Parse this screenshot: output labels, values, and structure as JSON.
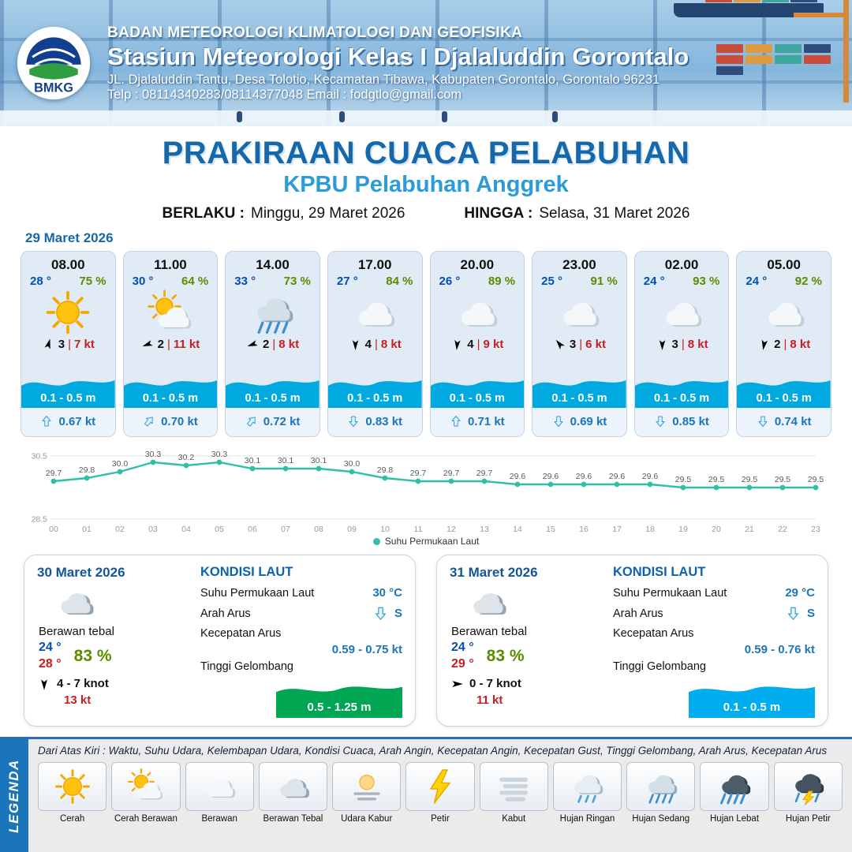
{
  "header": {
    "logo_text": "BMKG",
    "agency": "BADAN METEOROLOGI KLIMATOLOGI DAN GEOFISIKA",
    "station": "Stasiun Meteorologi Kelas I Djalaluddin Gorontalo",
    "address": "JL. Djalaluddin Tantu, Desa Tolotio, Kecamatan Tibawa, Kabupaten Gorontalo, Gorontalo 96231",
    "contact": "Telp : 08114340283/08114377048 Email : fodgtlo@gmail.com"
  },
  "title": {
    "main": "PRAKIRAAN CUACA PELABUHAN",
    "subtitle": "KPBU Pelabuhan Anggrek",
    "berlaku_label": "BERLAKU :",
    "berlaku_value": "Minggu, 29 Maret 2026",
    "hingga_label": "HINGGA :",
    "hingga_value": "Selasa, 31 Maret 2026"
  },
  "ui": {
    "pipe": "|"
  },
  "hourly": {
    "date": "29 Maret 2026",
    "cards": [
      {
        "time": "08.00",
        "temp": "28 °",
        "humidity": "75 %",
        "icon": "cerah",
        "wind_value": "3",
        "wind_speed": "7 kt",
        "wind_rot": 15,
        "wave": "0.1 - 0.5 m",
        "current_rot": 0,
        "current_speed": "0.67 kt"
      },
      {
        "time": "11.00",
        "temp": "30 °",
        "humidity": "64 %",
        "icon": "cerah-berawan",
        "wind_value": "2",
        "wind_speed": "11 kt",
        "wind_rot": 250,
        "wave": "0.1 - 0.5 m",
        "current_rot": 40,
        "current_speed": "0.70 kt"
      },
      {
        "time": "14.00",
        "temp": "33 °",
        "humidity": "73 %",
        "icon": "hujan-sedang",
        "wind_value": "2",
        "wind_speed": "8 kt",
        "wind_rot": 250,
        "wave": "0.1 - 0.5 m",
        "current_rot": 40,
        "current_speed": "0.72 kt"
      },
      {
        "time": "17.00",
        "temp": "27 °",
        "humidity": "84 %",
        "icon": "berawan",
        "wind_value": "4",
        "wind_speed": "8 kt",
        "wind_rot": 180,
        "wave": "0.1 - 0.5 m",
        "current_rot": 180,
        "current_speed": "0.83 kt"
      },
      {
        "time": "20.00",
        "temp": "26 °",
        "humidity": "89 %",
        "icon": "berawan",
        "wind_value": "4",
        "wind_speed": "9 kt",
        "wind_rot": 185,
        "wave": "0.1 - 0.5 m",
        "current_rot": 0,
        "current_speed": "0.71 kt"
      },
      {
        "time": "23.00",
        "temp": "25 °",
        "humidity": "91 %",
        "icon": "berawan",
        "wind_value": "3",
        "wind_speed": "6 kt",
        "wind_rot": 320,
        "wave": "0.1 - 0.5 m",
        "current_rot": 180,
        "current_speed": "0.69 kt"
      },
      {
        "time": "02.00",
        "temp": "24 °",
        "humidity": "93 %",
        "icon": "berawan",
        "wind_value": "3",
        "wind_speed": "8 kt",
        "wind_rot": 180,
        "wave": "0.1 - 0.5 m",
        "current_rot": 180,
        "current_speed": "0.85 kt"
      },
      {
        "time": "05.00",
        "temp": "24 °",
        "humidity": "92 %",
        "icon": "berawan",
        "wind_value": "2",
        "wind_speed": "8 kt",
        "wind_rot": 190,
        "wave": "0.1 - 0.5 m",
        "current_rot": 180,
        "current_speed": "0.74 kt"
      }
    ]
  },
  "chart_data": {
    "type": "line",
    "legend": "Suhu Permukaan Laut",
    "x": [
      "00",
      "01",
      "02",
      "03",
      "04",
      "05",
      "06",
      "07",
      "08",
      "09",
      "10",
      "11",
      "12",
      "13",
      "14",
      "15",
      "16",
      "17",
      "18",
      "19",
      "20",
      "21",
      "22",
      "23"
    ],
    "values": [
      29.7,
      29.8,
      30.0,
      30.3,
      30.2,
      30.3,
      30.1,
      30.1,
      30.1,
      30.0,
      29.8,
      29.7,
      29.7,
      29.7,
      29.6,
      29.6,
      29.6,
      29.6,
      29.6,
      29.5,
      29.5,
      29.5,
      29.5,
      29.5
    ],
    "xlabel": "",
    "ylabel": "",
    "ylim": [
      28.5,
      30.5
    ],
    "yticks": [
      28.5,
      30.5
    ],
    "line_color": "#2fc0a6"
  },
  "daily": [
    {
      "date": "30 Maret 2026",
      "condition": "Berawan tebal",
      "icon": "berawan-tebal",
      "temp_min": "24 °",
      "temp_max": "28 °",
      "humidity": "83 %",
      "wind_rot": 180,
      "wind_range": "4  - 7 knot",
      "gust": "13 kt",
      "sea": {
        "title": "KONDISI LAUT",
        "sst_label": "Suhu Permukaan Laut",
        "sst": "30 °C",
        "current_dir_label": "Arah Arus",
        "current_dir": "S",
        "current_rot": 180,
        "current_speed_label": "Kecepatan Arus",
        "current_speed": "0.59  - 0.75 kt",
        "wave_label": "Tinggi Gelombang",
        "wave": "0.5 - 1.25 m",
        "wave_color": "#00a651"
      }
    },
    {
      "date": "31 Maret 2026",
      "condition": "Berawan tebal",
      "icon": "berawan-tebal",
      "temp_min": "24 °",
      "temp_max": "29 °",
      "humidity": "83 %",
      "wind_rot": 90,
      "wind_range": "0  - 7 knot",
      "gust": "11 kt",
      "sea": {
        "title": "KONDISI LAUT",
        "sst_label": "Suhu Permukaan Laut",
        "sst": "29 °C",
        "current_dir_label": "Arah Arus",
        "current_dir": "S",
        "current_rot": 180,
        "current_speed_label": "Kecepatan Arus",
        "current_speed": "0.59  - 0.76 kt",
        "wave_label": "Tinggi Gelombang",
        "wave": "0.1 - 0.5 m",
        "wave_color": "#00aeef"
      }
    }
  ],
  "legend": {
    "title": "LEGENDA",
    "note": "Dari Atas Kiri : Waktu, Suhu Udara, Kelembapan Udara, Kondisi Cuaca, Arah Angin, Kecepatan Angin, Kecepatan Gust, Tinggi Gelombang, Arah Arus, Kecepatan Arus",
    "items": [
      {
        "label": "Cerah",
        "icon": "cerah"
      },
      {
        "label": "Cerah Berawan",
        "icon": "cerah-berawan"
      },
      {
        "label": "Berawan",
        "icon": "berawan"
      },
      {
        "label": "Berawan Tebal",
        "icon": "berawan-tebal"
      },
      {
        "label": "Udara Kabur",
        "icon": "udara-kabur"
      },
      {
        "label": "Petir",
        "icon": "petir"
      },
      {
        "label": "Kabut",
        "icon": "kabut"
      },
      {
        "label": "Hujan Ringan",
        "icon": "hujan-ringan"
      },
      {
        "label": "Hujan Sedang",
        "icon": "hujan-sedang"
      },
      {
        "label": "Hujan Lebat",
        "icon": "hujan-lebat"
      },
      {
        "label": "Hujan Petir",
        "icon": "hujan-petir"
      }
    ]
  }
}
